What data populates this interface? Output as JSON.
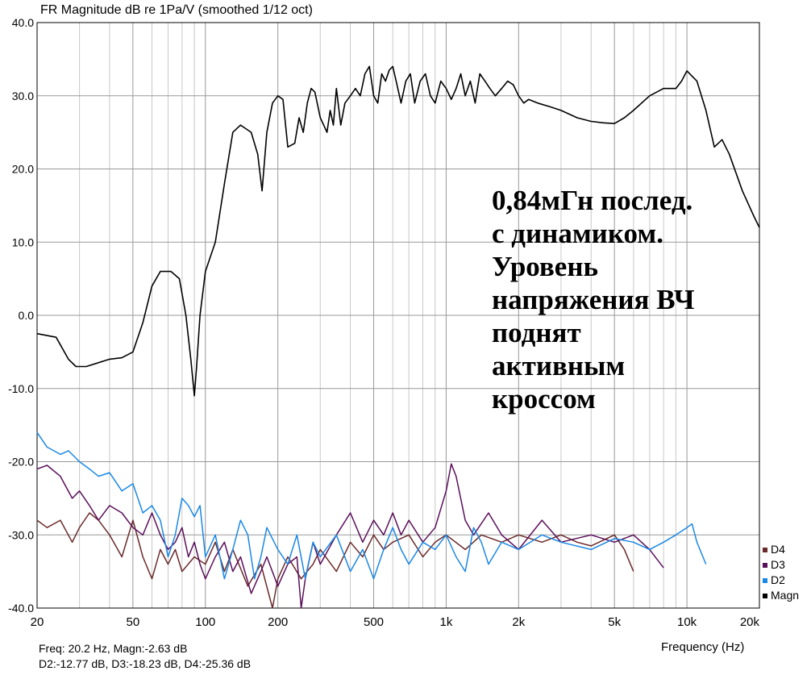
{
  "chart_data": {
    "type": "line",
    "title": "FR Magnitude dB re 1Pa/V (smoothed 1/12 oct)",
    "xlabel": "Frequency (Hz)",
    "ylabel": "",
    "x_scale": "log",
    "xlim": [
      20,
      20000
    ],
    "ylim": [
      -40,
      40
    ],
    "grid": true,
    "legend_position": "right-bottom",
    "y_ticks": [
      "40.0",
      "30.0",
      "20.0",
      "10.0",
      "0.0",
      "-10.0",
      "-20.0",
      "-30.0",
      "-40.0"
    ],
    "x_ticks": [
      {
        "value": 20,
        "label": "20"
      },
      {
        "value": 50,
        "label": "50"
      },
      {
        "value": 100,
        "label": "100"
      },
      {
        "value": 200,
        "label": "200"
      },
      {
        "value": 500,
        "label": "500"
      },
      {
        "value": 1000,
        "label": "1k"
      },
      {
        "value": 2000,
        "label": "2k"
      },
      {
        "value": 5000,
        "label": "5k"
      },
      {
        "value": 10000,
        "label": "10k"
      },
      {
        "value": 20000,
        "label": "20k"
      }
    ],
    "annotation": [
      "0,84мГн послед.",
      "с динамиком.",
      "Уровень",
      "напряжения ВЧ",
      "поднят",
      "активным",
      "кроссом"
    ],
    "readout": {
      "line1": "Freq: 20.2 Hz, Magn:-2.63 dB",
      "line2": "D2:-12.77 dB, D3:-18.23 dB, D4:-25.36 dB"
    },
    "series": [
      {
        "name": "Magn",
        "color": "#000000",
        "points": [
          [
            20,
            -2.5
          ],
          [
            24,
            -3
          ],
          [
            27,
            -6
          ],
          [
            29,
            -7
          ],
          [
            32,
            -7
          ],
          [
            40,
            -6
          ],
          [
            45,
            -5.8
          ],
          [
            50,
            -5
          ],
          [
            55,
            -1
          ],
          [
            60,
            4
          ],
          [
            65,
            6
          ],
          [
            72,
            6
          ],
          [
            78,
            5
          ],
          [
            83,
            0
          ],
          [
            87,
            -6
          ],
          [
            90,
            -11
          ],
          [
            92,
            -7
          ],
          [
            95,
            0
          ],
          [
            100,
            6
          ],
          [
            110,
            10
          ],
          [
            120,
            18
          ],
          [
            130,
            25
          ],
          [
            140,
            26
          ],
          [
            155,
            25
          ],
          [
            165,
            22
          ],
          [
            172,
            17
          ],
          [
            180,
            25
          ],
          [
            190,
            29
          ],
          [
            200,
            30
          ],
          [
            210,
            29.5
          ],
          [
            220,
            23
          ],
          [
            235,
            23.5
          ],
          [
            245,
            27
          ],
          [
            255,
            25
          ],
          [
            265,
            29
          ],
          [
            275,
            31
          ],
          [
            285,
            30.5
          ],
          [
            300,
            27
          ],
          [
            310,
            26
          ],
          [
            320,
            25
          ],
          [
            330,
            28
          ],
          [
            340,
            26
          ],
          [
            350,
            31
          ],
          [
            365,
            26
          ],
          [
            380,
            29
          ],
          [
            400,
            30
          ],
          [
            420,
            31
          ],
          [
            440,
            30
          ],
          [
            460,
            33
          ],
          [
            480,
            34
          ],
          [
            500,
            30
          ],
          [
            520,
            29
          ],
          [
            540,
            33
          ],
          [
            560,
            32
          ],
          [
            580,
            33.5
          ],
          [
            600,
            34
          ],
          [
            620,
            32
          ],
          [
            650,
            29
          ],
          [
            680,
            32
          ],
          [
            710,
            33
          ],
          [
            740,
            29
          ],
          [
            780,
            32
          ],
          [
            820,
            33
          ],
          [
            860,
            30
          ],
          [
            900,
            29
          ],
          [
            950,
            32
          ],
          [
            1000,
            31
          ],
          [
            1050,
            29.5
          ],
          [
            1100,
            31
          ],
          [
            1150,
            33
          ],
          [
            1200,
            30
          ],
          [
            1260,
            32
          ],
          [
            1320,
            29
          ],
          [
            1380,
            33
          ],
          [
            1450,
            32
          ],
          [
            1520,
            31
          ],
          [
            1600,
            30
          ],
          [
            1700,
            31
          ],
          [
            1800,
            32
          ],
          [
            1900,
            31.5
          ],
          [
            2000,
            30
          ],
          [
            2100,
            29
          ],
          [
            2200,
            29.5
          ],
          [
            2400,
            29
          ],
          [
            2700,
            28.5
          ],
          [
            3000,
            28
          ],
          [
            3500,
            27
          ],
          [
            4000,
            26.5
          ],
          [
            4500,
            26.3
          ],
          [
            5000,
            26.2
          ],
          [
            5500,
            27
          ],
          [
            6000,
            28
          ],
          [
            7000,
            30
          ],
          [
            8000,
            31
          ],
          [
            9000,
            31
          ],
          [
            9500,
            32
          ],
          [
            10000,
            33.4
          ],
          [
            11000,
            32
          ],
          [
            12000,
            28
          ],
          [
            13000,
            23
          ],
          [
            14000,
            24
          ],
          [
            15000,
            22
          ],
          [
            17000,
            17
          ],
          [
            19000,
            13.5
          ],
          [
            20000,
            12
          ]
        ]
      },
      {
        "name": "D2",
        "color": "#1a88e6",
        "points": [
          [
            20,
            -16
          ],
          [
            22,
            -18
          ],
          [
            25,
            -19
          ],
          [
            27,
            -18.5
          ],
          [
            30,
            -20
          ],
          [
            33,
            -21
          ],
          [
            36,
            -22
          ],
          [
            40,
            -21.5
          ],
          [
            45,
            -24
          ],
          [
            50,
            -23
          ],
          [
            55,
            -27
          ],
          [
            60,
            -26
          ],
          [
            65,
            -28
          ],
          [
            70,
            -33
          ],
          [
            75,
            -30
          ],
          [
            80,
            -25
          ],
          [
            85,
            -26
          ],
          [
            90,
            -27.5
          ],
          [
            95,
            -26
          ],
          [
            100,
            -33
          ],
          [
            110,
            -30
          ],
          [
            120,
            -36
          ],
          [
            130,
            -32
          ],
          [
            140,
            -28
          ],
          [
            150,
            -30
          ],
          [
            160,
            -36
          ],
          [
            170,
            -33
          ],
          [
            180,
            -29
          ],
          [
            200,
            -32
          ],
          [
            220,
            -34
          ],
          [
            240,
            -30
          ],
          [
            260,
            -36
          ],
          [
            280,
            -31
          ],
          [
            300,
            -33
          ],
          [
            350,
            -30
          ],
          [
            400,
            -35
          ],
          [
            450,
            -32
          ],
          [
            500,
            -36
          ],
          [
            550,
            -32
          ],
          [
            600,
            -29
          ],
          [
            650,
            -32
          ],
          [
            700,
            -34
          ],
          [
            800,
            -31
          ],
          [
            900,
            -32
          ],
          [
            1000,
            -30
          ],
          [
            1100,
            -33
          ],
          [
            1200,
            -35
          ],
          [
            1300,
            -29
          ],
          [
            1400,
            -31
          ],
          [
            1500,
            -34
          ],
          [
            1700,
            -31
          ],
          [
            2000,
            -32
          ],
          [
            2500,
            -30
          ],
          [
            3000,
            -31
          ],
          [
            4000,
            -32
          ],
          [
            5000,
            -30.5
          ],
          [
            6000,
            -31
          ],
          [
            7000,
            -32
          ],
          [
            8000,
            -31
          ],
          [
            9000,
            -30
          ],
          [
            10000,
            -29
          ],
          [
            10500,
            -28.5
          ],
          [
            11000,
            -31
          ],
          [
            12000,
            -34
          ]
        ]
      },
      {
        "name": "D3",
        "color": "#5a0f5a",
        "points": [
          [
            20,
            -21
          ],
          [
            22,
            -20.5
          ],
          [
            25,
            -22
          ],
          [
            28,
            -25
          ],
          [
            30,
            -24
          ],
          [
            33,
            -26
          ],
          [
            36,
            -28
          ],
          [
            40,
            -26
          ],
          [
            45,
            -27
          ],
          [
            50,
            -29
          ],
          [
            55,
            -30
          ],
          [
            60,
            -27
          ],
          [
            65,
            -30
          ],
          [
            70,
            -32
          ],
          [
            75,
            -31
          ],
          [
            80,
            -29
          ],
          [
            85,
            -33
          ],
          [
            90,
            -31
          ],
          [
            95,
            -34
          ],
          [
            100,
            -36
          ],
          [
            110,
            -33
          ],
          [
            120,
            -31
          ],
          [
            130,
            -35
          ],
          [
            140,
            -33
          ],
          [
            155,
            -38
          ],
          [
            170,
            -35
          ],
          [
            180,
            -33
          ],
          [
            200,
            -37
          ],
          [
            220,
            -34
          ],
          [
            240,
            -33
          ],
          [
            250,
            -40
          ],
          [
            260,
            -36
          ],
          [
            280,
            -31
          ],
          [
            300,
            -34
          ],
          [
            350,
            -30
          ],
          [
            400,
            -27
          ],
          [
            450,
            -31
          ],
          [
            500,
            -28
          ],
          [
            550,
            -30
          ],
          [
            600,
            -27
          ],
          [
            650,
            -30
          ],
          [
            700,
            -28
          ],
          [
            800,
            -31
          ],
          [
            900,
            -29
          ],
          [
            1000,
            -24
          ],
          [
            1050,
            -20.3
          ],
          [
            1100,
            -22
          ],
          [
            1200,
            -28
          ],
          [
            1300,
            -30
          ],
          [
            1500,
            -27
          ],
          [
            1700,
            -30
          ],
          [
            2000,
            -32
          ],
          [
            2500,
            -28
          ],
          [
            3000,
            -31
          ],
          [
            4000,
            -30
          ],
          [
            5000,
            -31
          ],
          [
            6000,
            -30
          ],
          [
            7000,
            -32
          ],
          [
            8000,
            -34.5
          ]
        ]
      },
      {
        "name": "D4",
        "color": "#6b2a2a",
        "points": [
          [
            20,
            -28
          ],
          [
            22,
            -29
          ],
          [
            25,
            -28
          ],
          [
            28,
            -31
          ],
          [
            30,
            -29
          ],
          [
            33,
            -27
          ],
          [
            36,
            -28
          ],
          [
            40,
            -30
          ],
          [
            45,
            -33
          ],
          [
            50,
            -28
          ],
          [
            55,
            -33
          ],
          [
            60,
            -36
          ],
          [
            65,
            -32
          ],
          [
            70,
            -34
          ],
          [
            75,
            -32
          ],
          [
            80,
            -35
          ],
          [
            90,
            -33
          ],
          [
            100,
            -34
          ],
          [
            110,
            -31
          ],
          [
            120,
            -35
          ],
          [
            130,
            -32
          ],
          [
            150,
            -37
          ],
          [
            170,
            -34
          ],
          [
            190,
            -40
          ],
          [
            200,
            -36
          ],
          [
            220,
            -33
          ],
          [
            250,
            -36
          ],
          [
            280,
            -34
          ],
          [
            300,
            -32
          ],
          [
            350,
            -35
          ],
          [
            400,
            -31
          ],
          [
            450,
            -33
          ],
          [
            500,
            -30
          ],
          [
            550,
            -32
          ],
          [
            600,
            -31
          ],
          [
            700,
            -30
          ],
          [
            800,
            -33
          ],
          [
            900,
            -31
          ],
          [
            1000,
            -30
          ],
          [
            1200,
            -32
          ],
          [
            1400,
            -30
          ],
          [
            1700,
            -31
          ],
          [
            2000,
            -30
          ],
          [
            2500,
            -31
          ],
          [
            3000,
            -30
          ],
          [
            3500,
            -31
          ],
          [
            4000,
            -31.5
          ],
          [
            5000,
            -30
          ],
          [
            5500,
            -32
          ],
          [
            6000,
            -35
          ]
        ]
      }
    ]
  }
}
